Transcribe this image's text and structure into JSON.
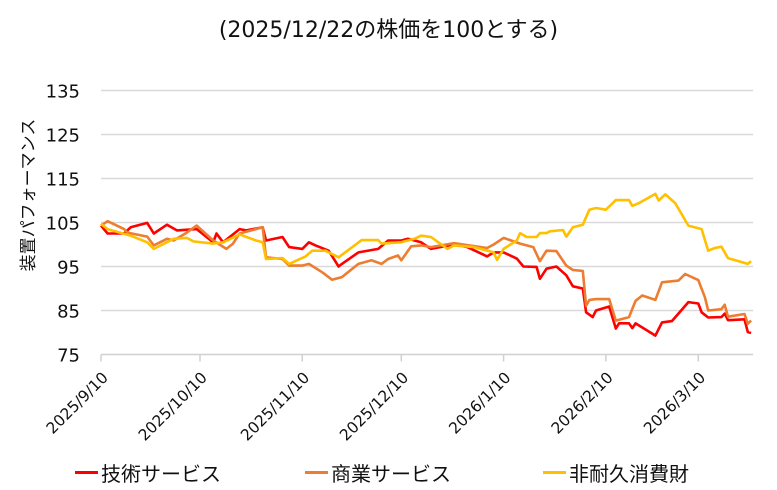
{
  "chart_data": {
    "type": "line",
    "title": "(2025/12/22の株価を100とする)",
    "ylabel": "装置パフォーマンス",
    "xlabel": "",
    "ylim": [
      75,
      135
    ],
    "yticks": [
      75,
      85,
      95,
      105,
      115,
      125,
      135
    ],
    "x_unit": "days since 2025/9/10",
    "xlim": [
      0,
      197
    ],
    "xticks": [
      {
        "day": 0,
        "label": "2025/9/10"
      },
      {
        "day": 30,
        "label": "2025/10/10"
      },
      {
        "day": 61,
        "label": "2025/11/10"
      },
      {
        "day": 91,
        "label": "2025/12/10"
      },
      {
        "day": 122,
        "label": "2026/1/10"
      },
      {
        "day": 153,
        "label": "2026/2/10"
      },
      {
        "day": 181,
        "label": "2026/3/10"
      }
    ],
    "grid": true,
    "legend_position": "bottom",
    "series": [
      {
        "name": "技術サービス",
        "color": "#FF0000",
        "points": [
          [
            0,
            104.3
          ],
          [
            2,
            102.5
          ],
          [
            7,
            102.5
          ],
          [
            9,
            103.9
          ],
          [
            14,
            104.9
          ],
          [
            16,
            102.5
          ],
          [
            20,
            104.5
          ],
          [
            23,
            103.2
          ],
          [
            29,
            103.5
          ],
          [
            34,
            100.5
          ],
          [
            35,
            102.5
          ],
          [
            37,
            100.5
          ],
          [
            42,
            103.5
          ],
          [
            44,
            103.2
          ],
          [
            49,
            103.9
          ],
          [
            50,
            100.9
          ],
          [
            55,
            101.7
          ],
          [
            57,
            99.4
          ],
          [
            61,
            99
          ],
          [
            63,
            100.5
          ],
          [
            65,
            99.8
          ],
          [
            69,
            98.6
          ],
          [
            72,
            95
          ],
          [
            73,
            95.6
          ],
          [
            78,
            98.2
          ],
          [
            84,
            99
          ],
          [
            87,
            100.9
          ],
          [
            91,
            100.9
          ],
          [
            93,
            101.3
          ],
          [
            97,
            100.5
          ],
          [
            100,
            99
          ],
          [
            107,
            100
          ],
          [
            111,
            99.4
          ],
          [
            117,
            97.3
          ],
          [
            119,
            98.2
          ],
          [
            122,
            98.2
          ],
          [
            126,
            96.8
          ],
          [
            128,
            95
          ],
          [
            132,
            94.9
          ],
          [
            133,
            92.2
          ],
          [
            135,
            94.5
          ],
          [
            138,
            95
          ],
          [
            141,
            93
          ],
          [
            143,
            90.5
          ],
          [
            146,
            90
          ],
          [
            147,
            84.6
          ],
          [
            149,
            83.5
          ],
          [
            150,
            85
          ],
          [
            154,
            85.9
          ],
          [
            156,
            80.9
          ],
          [
            157,
            82.1
          ],
          [
            160,
            82.1
          ],
          [
            161,
            81
          ],
          [
            162,
            82.1
          ],
          [
            168,
            79.3
          ],
          [
            170,
            82.3
          ],
          [
            173,
            82.6
          ],
          [
            178,
            86.9
          ],
          [
            181,
            86.6
          ],
          [
            182,
            84.6
          ],
          [
            184,
            83.4
          ],
          [
            188,
            83.5
          ],
          [
            189,
            84.3
          ],
          [
            190,
            82.8
          ],
          [
            195,
            83
          ],
          [
            196,
            80.1
          ],
          [
            197,
            79.9
          ]
        ]
      },
      {
        "name": "商業サービス",
        "color": "#ED7D31",
        "points": [
          [
            0,
            104.3
          ],
          [
            2,
            105.3
          ],
          [
            7,
            103.5
          ],
          [
            8,
            102.7
          ],
          [
            14,
            101.8
          ],
          [
            16,
            99.8
          ],
          [
            20,
            101.3
          ],
          [
            22,
            100.9
          ],
          [
            26,
            102.7
          ],
          [
            29,
            104.3
          ],
          [
            34,
            100.9
          ],
          [
            38,
            99
          ],
          [
            40,
            100.2
          ],
          [
            42,
            102.5
          ],
          [
            49,
            103.9
          ],
          [
            50,
            97.1
          ],
          [
            55,
            96.7
          ],
          [
            57,
            95.2
          ],
          [
            61,
            95.2
          ],
          [
            63,
            95.6
          ],
          [
            67,
            93.7
          ],
          [
            70,
            92
          ],
          [
            73,
            92.6
          ],
          [
            78,
            95.6
          ],
          [
            82,
            96.4
          ],
          [
            85,
            95.6
          ],
          [
            87,
            96.7
          ],
          [
            90,
            97.5
          ],
          [
            91,
            96.4
          ],
          [
            94,
            99.6
          ],
          [
            97,
            99.8
          ],
          [
            100,
            99.4
          ],
          [
            107,
            100.3
          ],
          [
            117,
            99.2
          ],
          [
            119,
            100
          ],
          [
            122,
            101.5
          ],
          [
            127,
            100.2
          ],
          [
            131,
            99.4
          ],
          [
            133,
            96.2
          ],
          [
            135,
            98.6
          ],
          [
            138,
            98.5
          ],
          [
            141,
            95.2
          ],
          [
            143,
            94.2
          ],
          [
            146,
            94
          ],
          [
            147,
            86.1
          ],
          [
            148,
            87.4
          ],
          [
            150,
            87.6
          ],
          [
            154,
            87.6
          ],
          [
            156,
            82.7
          ],
          [
            160,
            83.5
          ],
          [
            162,
            87.2
          ],
          [
            164,
            88.4
          ],
          [
            168,
            87.4
          ],
          [
            170,
            91.4
          ],
          [
            175,
            91.8
          ],
          [
            177,
            93.3
          ],
          [
            181,
            91.9
          ],
          [
            183,
            88
          ],
          [
            184,
            85
          ],
          [
            188,
            85.3
          ],
          [
            189,
            86.3
          ],
          [
            190,
            83.6
          ],
          [
            195,
            84.2
          ],
          [
            196,
            82
          ],
          [
            197,
            82.7
          ]
        ]
      },
      {
        "name": "非耐久消費財",
        "color": "#FFC000",
        "points": [
          [
            0,
            104.7
          ],
          [
            2,
            103.5
          ],
          [
            9,
            102
          ],
          [
            14,
            100.5
          ],
          [
            16,
            99
          ],
          [
            22,
            101.3
          ],
          [
            26,
            101.5
          ],
          [
            28,
            100.7
          ],
          [
            34,
            100.2
          ],
          [
            37,
            100.5
          ],
          [
            42,
            102.3
          ],
          [
            47,
            100.9
          ],
          [
            49,
            100.5
          ],
          [
            50,
            96.7
          ],
          [
            55,
            96.9
          ],
          [
            57,
            95.6
          ],
          [
            62,
            97.3
          ],
          [
            64,
            98.6
          ],
          [
            68,
            98.6
          ],
          [
            72,
            97.1
          ],
          [
            79,
            101
          ],
          [
            84,
            101
          ],
          [
            85,
            100.2
          ],
          [
            91,
            100.5
          ],
          [
            95,
            101.3
          ],
          [
            97,
            102
          ],
          [
            100,
            101.7
          ],
          [
            105,
            99
          ],
          [
            107,
            99.8
          ],
          [
            113,
            99.4
          ],
          [
            119,
            98.2
          ],
          [
            120,
            96.5
          ],
          [
            122,
            99
          ],
          [
            126,
            100.9
          ],
          [
            127,
            102.6
          ],
          [
            129,
            101.7
          ],
          [
            132,
            101.7
          ],
          [
            133,
            102.6
          ],
          [
            135,
            102.6
          ],
          [
            136,
            103
          ],
          [
            140,
            103.3
          ],
          [
            141,
            101.8
          ],
          [
            143,
            103.9
          ],
          [
            146,
            104.5
          ],
          [
            148,
            107.9
          ],
          [
            150,
            108.3
          ],
          [
            153,
            107.9
          ],
          [
            156,
            110.1
          ],
          [
            160,
            110.1
          ],
          [
            161,
            108.8
          ],
          [
            163,
            109.4
          ],
          [
            168,
            111.5
          ],
          [
            169,
            110
          ],
          [
            171,
            111.4
          ],
          [
            174,
            109.4
          ],
          [
            178,
            104.3
          ],
          [
            182,
            103.5
          ],
          [
            184,
            98.6
          ],
          [
            186,
            99.2
          ],
          [
            188,
            99.5
          ],
          [
            190,
            96.9
          ],
          [
            196,
            95.6
          ],
          [
            197,
            96.2
          ]
        ]
      }
    ]
  }
}
